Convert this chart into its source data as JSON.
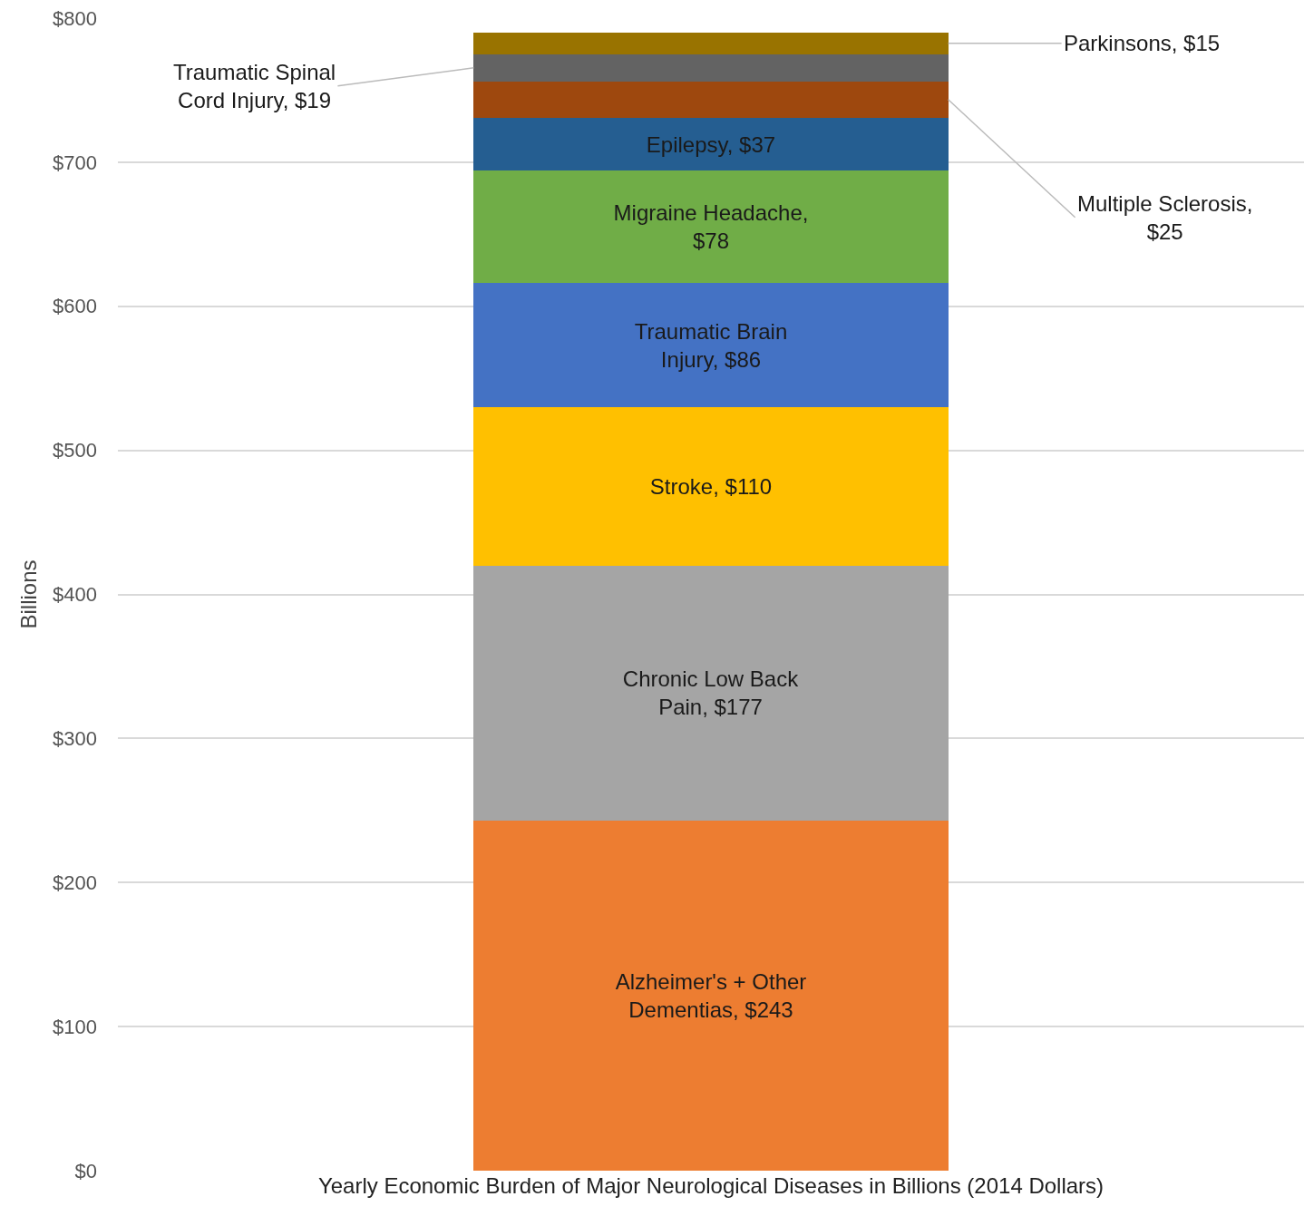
{
  "chart_data": {
    "type": "bar",
    "stacked": true,
    "categories": [
      null
    ],
    "xlabel": "Yearly Economic Burden of Major Neurological Diseases in Billions (2014 Dollars)",
    "ylabel": "Billions",
    "ylim": [
      0,
      800
    ],
    "yticks": [
      {
        "value": 0,
        "label": "$0"
      },
      {
        "value": 100,
        "label": "$100"
      },
      {
        "value": 200,
        "label": "$200"
      },
      {
        "value": 300,
        "label": "$300"
      },
      {
        "value": 400,
        "label": "$400"
      },
      {
        "value": 500,
        "label": "$500"
      },
      {
        "value": 600,
        "label": "$600"
      },
      {
        "value": 700,
        "label": "$700"
      },
      {
        "value": 800,
        "label": "$800"
      }
    ],
    "grid": "y",
    "legend": false,
    "series": [
      {
        "color": "#ed7d31",
        "values": [
          243
        ],
        "value_labels": [
          "Alzheimer's + Other Dementias, $243"
        ]
      },
      {
        "color": "#a5a5a5",
        "values": [
          177
        ],
        "value_labels": [
          "Chronic Low Back Pain, $177"
        ]
      },
      {
        "color": "#ffc000",
        "values": [
          110
        ],
        "value_labels": [
          "Stroke, $110"
        ]
      },
      {
        "color": "#4472c4",
        "values": [
          86
        ],
        "value_labels": [
          "Traumatic Brain Injury, $86"
        ]
      },
      {
        "color": "#70ad47",
        "values": [
          78
        ],
        "value_labels": [
          "Migraine Headache, $78"
        ]
      },
      {
        "color": "#255e91",
        "values": [
          37
        ],
        "value_labels": [
          "Epilepsy, $37"
        ]
      },
      {
        "color": "#9e480e",
        "values": [
          25
        ],
        "value_labels": [
          "Multiple Sclerosis, $25"
        ]
      },
      {
        "color": "#636363",
        "values": [
          19
        ],
        "value_labels": [
          "Traumatic Spinal Cord Injury, $19"
        ]
      },
      {
        "color": "#997300",
        "values": [
          15
        ],
        "value_labels": [
          "Parkinsons, $15"
        ]
      }
    ]
  }
}
